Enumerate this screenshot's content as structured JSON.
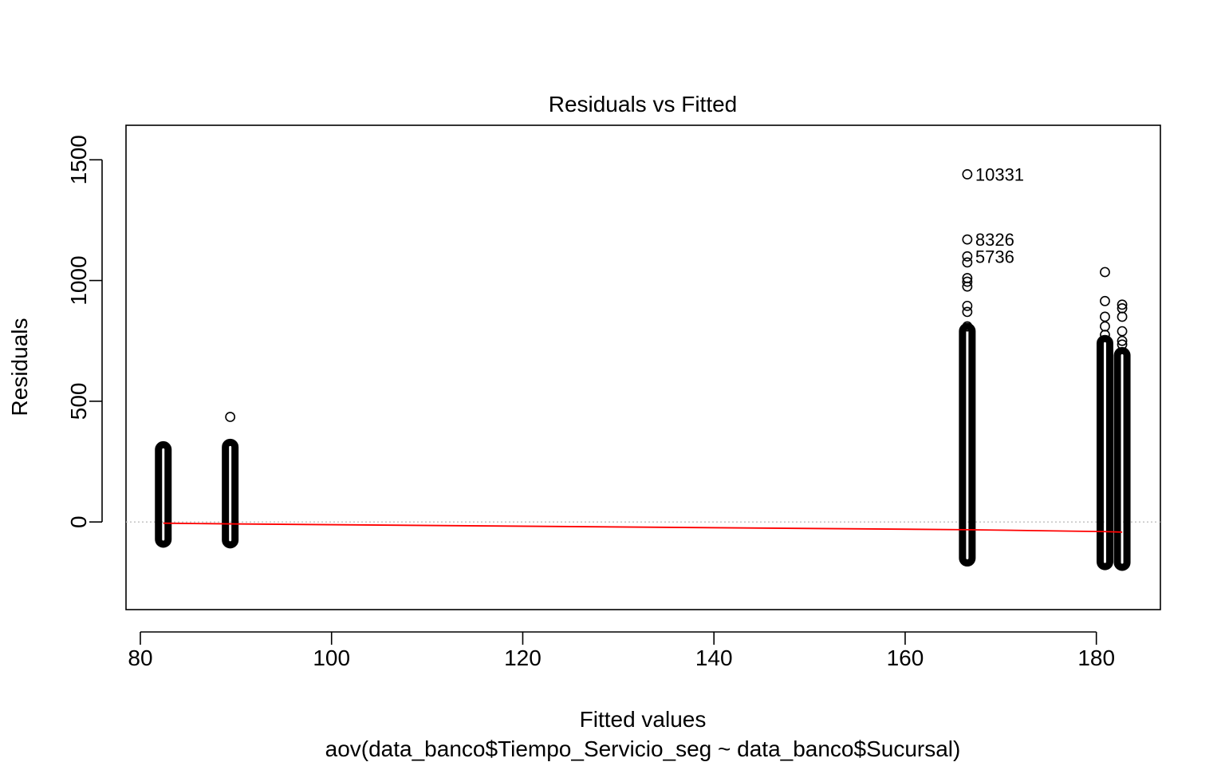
{
  "chart_data": {
    "type": "scatter",
    "title": "Residuals vs Fitted",
    "xlabel": "Fitted values",
    "subtitle": "aov(data_banco$Tiempo_Servicio_seg ~ data_banco$Sucursal)",
    "ylabel": "Residuals",
    "xlim": [
      78.5,
      186.7
    ],
    "ylim": [
      -363,
      1643
    ],
    "x_ticks": [
      80,
      100,
      120,
      140,
      160,
      180
    ],
    "y_ticks": [
      0,
      500,
      1000,
      1500
    ],
    "grid": false,
    "groups": [
      {
        "fitted": 82.4,
        "range": [
          -72,
          300
        ],
        "outliers": []
      },
      {
        "fitted": 89.4,
        "range": [
          -75,
          310
        ],
        "outliers": [
          435
        ]
      },
      {
        "fitted": 166.5,
        "range": [
          -150,
          790
        ],
        "outliers": [
          810,
          870,
          895,
          975,
          995,
          1010,
          1075,
          1100,
          1170,
          1440
        ]
      },
      {
        "fitted": 180.9,
        "range": [
          -165,
          740
        ],
        "outliers": [
          775,
          810,
          850,
          915,
          1035
        ]
      },
      {
        "fitted": 182.7,
        "range": [
          -168,
          690
        ],
        "outliers": [
          735,
          750,
          790,
          850,
          885,
          900
        ]
      }
    ],
    "labeled_points": [
      {
        "label": "10331",
        "x": 166.5,
        "y": 1440
      },
      {
        "label": "8326",
        "x": 166.5,
        "y": 1170
      },
      {
        "label": "5736",
        "x": 166.5,
        "y": 1100
      }
    ],
    "reference_line": {
      "y": 0,
      "style": "dotted",
      "color": "#BEBEBE"
    },
    "smooth_line": {
      "color": "#FF0000",
      "x": [
        82.4,
        89.4,
        166.5,
        180.9,
        182.7
      ],
      "y": [
        -5,
        -8,
        -32,
        -40,
        -42
      ]
    },
    "point_color": "#000000"
  }
}
